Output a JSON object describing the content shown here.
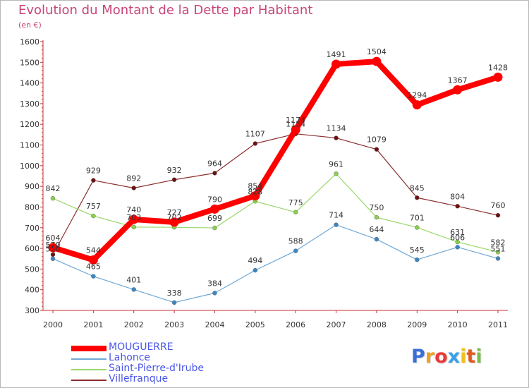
{
  "title": "Evolution du Montant de la Dette par Habitant",
  "subtitle": "(en €)",
  "chart_data": {
    "type": "line",
    "x": [
      "2000",
      "2001",
      "2002",
      "2003",
      "2004",
      "2005",
      "2006",
      "2007",
      "2008",
      "2009",
      "2010",
      "2011"
    ],
    "ylim": [
      300,
      1600
    ],
    "yticks": [
      300,
      400,
      500,
      600,
      700,
      800,
      900,
      1000,
      1100,
      1200,
      1300,
      1400,
      1500,
      1600
    ],
    "grid": false,
    "legend_position": "bottom-left",
    "series": [
      {
        "name": "Villefranque",
        "color": "#8b2e2e",
        "marker": "#6e1010",
        "width": 1.2,
        "values": [
          570,
          929,
          892,
          932,
          964,
          1107,
          1154,
          1134,
          1079,
          845,
          804,
          760
        ]
      },
      {
        "name": "Saint-Pierre-d'Irube",
        "color": "#9ad86a",
        "marker": "#8ad04a",
        "width": 1.2,
        "values": [
          842,
          757,
          703,
          702,
          699,
          828,
          775,
          961,
          750,
          701,
          631,
          582
        ]
      },
      {
        "name": "Lahonce",
        "color": "#6fa8d6",
        "marker": "#3c86c4",
        "width": 1.2,
        "values": [
          550,
          465,
          401,
          338,
          384,
          494,
          588,
          714,
          644,
          545,
          606,
          551
        ]
      },
      {
        "name": "MOUGUERRE",
        "color": "#ff0000",
        "marker": "#ff0000",
        "width": 8,
        "values": [
          604,
          544,
          740,
          727,
          790,
          854,
          1174,
          1491,
          1504,
          1294,
          1367,
          1428
        ]
      }
    ],
    "legend_order": [
      "MOUGUERRE",
      "Lahonce",
      "Saint-Pierre-d'Irube",
      "Villefranque"
    ]
  },
  "logo": {
    "letters": [
      {
        "ch": "P",
        "color": "#3a6fd8"
      },
      {
        "ch": "r",
        "color": "#f0a020"
      },
      {
        "ch": "o",
        "color": "#e83a3a"
      },
      {
        "ch": "x",
        "color": "#3aa0e8"
      },
      {
        "ch": "i",
        "color": "#f0c020"
      },
      {
        "ch": "t",
        "color": "#e05a20"
      },
      {
        "ch": "i",
        "color": "#7ac040"
      }
    ]
  }
}
